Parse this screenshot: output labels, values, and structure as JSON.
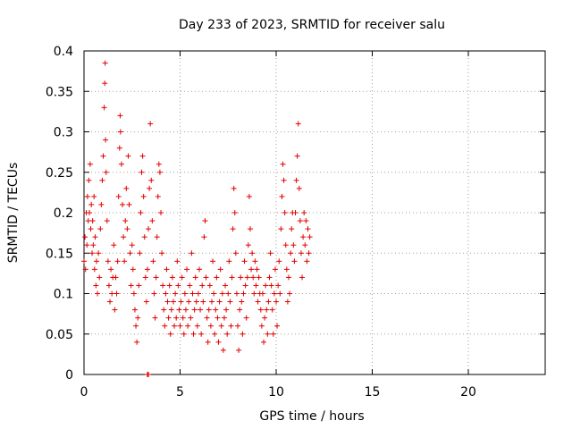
{
  "chart_data": {
    "type": "scatter",
    "title": "Day 233 of 2023, SRMTID for receiver salu",
    "xlabel": "GPS time / hours",
    "ylabel": "SRMTID / TECUs",
    "xlim": [
      0,
      24
    ],
    "ylim": [
      0,
      0.4
    ],
    "x_ticks": [
      0,
      5,
      10,
      15,
      20
    ],
    "y_ticks": [
      0,
      0.05,
      0.1,
      0.15,
      0.2,
      0.25,
      0.3,
      0.35,
      0.4
    ],
    "x_tick_labels": [
      "0",
      "5",
      "10",
      "15",
      "20"
    ],
    "y_tick_labels": [
      "0",
      "0.05",
      "0.1",
      "0.15",
      "0.2",
      "0.25",
      "0.3",
      "0.35",
      "0.4"
    ],
    "grid": true,
    "marker": "+",
    "color": "#e00000",
    "series": [
      {
        "points": [
          [
            0.0,
            0.14
          ],
          [
            0.05,
            0.17
          ],
          [
            0.08,
            0.13
          ],
          [
            0.12,
            0.2
          ],
          [
            0.15,
            0.16
          ],
          [
            0.18,
            0.22
          ],
          [
            0.22,
            0.19
          ],
          [
            0.25,
            0.24
          ],
          [
            0.28,
            0.2
          ],
          [
            0.32,
            0.26
          ],
          [
            0.35,
            0.18
          ],
          [
            0.38,
            0.21
          ],
          [
            0.42,
            0.15
          ],
          [
            0.45,
            0.19
          ],
          [
            0.48,
            0.16
          ],
          [
            0.52,
            0.22
          ],
          [
            0.55,
            0.13
          ],
          [
            0.58,
            0.17
          ],
          [
            0.62,
            0.11
          ],
          [
            0.65,
            0.14
          ],
          [
            0.7,
            0.1
          ],
          [
            0.75,
            0.15
          ],
          [
            0.8,
            0.12
          ],
          [
            0.85,
            0.18
          ],
          [
            0.9,
            0.21
          ],
          [
            0.95,
            0.24
          ],
          [
            1.0,
            0.27
          ],
          [
            1.05,
            0.33
          ],
          [
            1.08,
            0.36
          ],
          [
            1.1,
            0.385
          ],
          [
            1.12,
            0.29
          ],
          [
            1.15,
            0.25
          ],
          [
            1.2,
            0.19
          ],
          [
            1.25,
            0.14
          ],
          [
            1.3,
            0.11
          ],
          [
            1.35,
            0.09
          ],
          [
            1.4,
            0.13
          ],
          [
            1.45,
            0.1
          ],
          [
            1.5,
            0.12
          ],
          [
            1.55,
            0.16
          ],
          [
            1.6,
            0.08
          ],
          [
            1.65,
            0.12
          ],
          [
            1.7,
            0.1
          ],
          [
            1.75,
            0.14
          ],
          [
            1.8,
            0.22
          ],
          [
            1.85,
            0.28
          ],
          [
            1.88,
            0.32
          ],
          [
            1.9,
            0.3
          ],
          [
            1.95,
            0.26
          ],
          [
            2.0,
            0.21
          ],
          [
            2.05,
            0.17
          ],
          [
            2.1,
            0.14
          ],
          [
            2.15,
            0.19
          ],
          [
            2.2,
            0.23
          ],
          [
            2.25,
            0.18
          ],
          [
            2.3,
            0.27
          ],
          [
            2.35,
            0.21
          ],
          [
            2.4,
            0.15
          ],
          [
            2.45,
            0.11
          ],
          [
            2.5,
            0.16
          ],
          [
            2.55,
            0.13
          ],
          [
            2.6,
            0.1
          ],
          [
            2.65,
            0.08
          ],
          [
            2.7,
            0.06
          ],
          [
            2.75,
            0.04
          ],
          [
            2.8,
            0.07
          ],
          [
            2.85,
            0.11
          ],
          [
            2.9,
            0.15
          ],
          [
            2.95,
            0.2
          ],
          [
            3.0,
            0.25
          ],
          [
            3.05,
            0.27
          ],
          [
            3.1,
            0.22
          ],
          [
            3.15,
            0.17
          ],
          [
            3.2,
            0.12
          ],
          [
            3.25,
            0.09
          ],
          [
            3.3,
            0.13
          ],
          [
            3.35,
            0.18
          ],
          [
            3.4,
            0.23
          ],
          [
            3.45,
            0.31
          ],
          [
            3.5,
            0.24
          ],
          [
            3.55,
            0.19
          ],
          [
            3.6,
            0.14
          ],
          [
            3.65,
            0.1
          ],
          [
            3.7,
            0.07
          ],
          [
            3.75,
            0.12
          ],
          [
            3.8,
            0.17
          ],
          [
            3.85,
            0.22
          ],
          [
            3.9,
            0.26
          ],
          [
            3.95,
            0.25
          ],
          [
            4.0,
            0.2
          ],
          [
            4.05,
            0.15
          ],
          [
            4.1,
            0.11
          ],
          [
            4.15,
            0.08
          ],
          [
            4.2,
            0.06
          ],
          [
            4.25,
            0.1
          ],
          [
            4.3,
            0.13
          ],
          [
            4.35,
            0.09
          ],
          [
            4.4,
            0.07
          ],
          [
            4.45,
            0.11
          ],
          [
            4.5,
            0.05
          ],
          [
            4.55,
            0.08
          ],
          [
            4.6,
            0.12
          ],
          [
            4.65,
            0.09
          ],
          [
            4.7,
            0.06
          ],
          [
            4.75,
            0.1
          ],
          [
            4.8,
            0.07
          ],
          [
            4.85,
            0.14
          ],
          [
            4.9,
            0.11
          ],
          [
            4.95,
            0.08
          ],
          [
            5.0,
            0.06
          ],
          [
            5.05,
            0.09
          ],
          [
            5.1,
            0.12
          ],
          [
            5.15,
            0.07
          ],
          [
            5.2,
            0.05
          ],
          [
            5.25,
            0.1
          ],
          [
            5.3,
            0.08
          ],
          [
            5.35,
            0.13
          ],
          [
            5.4,
            0.06
          ],
          [
            5.45,
            0.09
          ],
          [
            5.5,
            0.11
          ],
          [
            5.55,
            0.07
          ],
          [
            5.6,
            0.15
          ],
          [
            5.65,
            0.1
          ],
          [
            5.7,
            0.05
          ],
          [
            5.75,
            0.08
          ],
          [
            5.8,
            0.12
          ],
          [
            5.85,
            0.09
          ],
          [
            5.9,
            0.06
          ],
          [
            5.95,
            0.1
          ],
          [
            6.0,
            0.13
          ],
          [
            6.05,
            0.08
          ],
          [
            6.1,
            0.05
          ],
          [
            6.15,
            0.11
          ],
          [
            6.2,
            0.09
          ],
          [
            6.25,
            0.17
          ],
          [
            6.3,
            0.19
          ],
          [
            6.35,
            0.12
          ],
          [
            6.4,
            0.07
          ],
          [
            6.45,
            0.04
          ],
          [
            6.5,
            0.08
          ],
          [
            6.55,
            0.11
          ],
          [
            6.6,
            0.06
          ],
          [
            6.65,
            0.09
          ],
          [
            6.7,
            0.14
          ],
          [
            6.75,
            0.1
          ],
          [
            6.8,
            0.05
          ],
          [
            6.85,
            0.08
          ],
          [
            6.9,
            0.12
          ],
          [
            6.95,
            0.07
          ],
          [
            7.0,
            0.04
          ],
          [
            7.05,
            0.09
          ],
          [
            7.1,
            0.13
          ],
          [
            7.15,
            0.06
          ],
          [
            7.2,
            0.1
          ],
          [
            7.25,
            0.03
          ],
          [
            7.3,
            0.07
          ],
          [
            7.35,
            0.11
          ],
          [
            7.4,
            0.08
          ],
          [
            7.45,
            0.05
          ],
          [
            7.5,
            0.1
          ],
          [
            7.55,
            0.14
          ],
          [
            7.6,
            0.09
          ],
          [
            7.65,
            0.06
          ],
          [
            7.7,
            0.12
          ],
          [
            7.75,
            0.18
          ],
          [
            7.8,
            0.23
          ],
          [
            7.85,
            0.2
          ],
          [
            7.9,
            0.15
          ],
          [
            7.95,
            0.1
          ],
          [
            8.0,
            0.06
          ],
          [
            8.05,
            0.03
          ],
          [
            8.1,
            0.08
          ],
          [
            8.15,
            0.12
          ],
          [
            8.2,
            0.09
          ],
          [
            8.25,
            0.05
          ],
          [
            8.3,
            0.1
          ],
          [
            8.35,
            0.14
          ],
          [
            8.4,
            0.11
          ],
          [
            8.45,
            0.07
          ],
          [
            8.5,
            0.12
          ],
          [
            8.55,
            0.16
          ],
          [
            8.6,
            0.22
          ],
          [
            8.65,
            0.18
          ],
          [
            8.7,
            0.13
          ],
          [
            8.75,
            0.15
          ],
          [
            8.8,
            0.12
          ],
          [
            8.85,
            0.1
          ],
          [
            8.9,
            0.14
          ],
          [
            8.95,
            0.11
          ],
          [
            9.0,
            0.13
          ],
          [
            9.05,
            0.09
          ],
          [
            9.1,
            0.12
          ],
          [
            9.15,
            0.1
          ],
          [
            9.2,
            0.08
          ],
          [
            9.25,
            0.06
          ],
          [
            9.3,
            0.1
          ],
          [
            9.35,
            0.04
          ],
          [
            9.4,
            0.07
          ],
          [
            9.45,
            0.11
          ],
          [
            9.5,
            0.08
          ],
          [
            9.55,
            0.05
          ],
          [
            9.6,
            0.09
          ],
          [
            9.65,
            0.12
          ],
          [
            9.7,
            0.15
          ],
          [
            9.75,
            0.11
          ],
          [
            9.8,
            0.08
          ],
          [
            9.85,
            0.05
          ],
          [
            9.9,
            0.1
          ],
          [
            9.95,
            0.13
          ],
          [
            10.0,
            0.09
          ],
          [
            10.05,
            0.06
          ],
          [
            10.1,
            0.11
          ],
          [
            10.15,
            0.14
          ],
          [
            10.2,
            0.1
          ],
          [
            10.25,
            0.18
          ],
          [
            10.3,
            0.22
          ],
          [
            10.35,
            0.26
          ],
          [
            10.4,
            0.24
          ],
          [
            10.45,
            0.2
          ],
          [
            10.5,
            0.16
          ],
          [
            10.55,
            0.13
          ],
          [
            10.6,
            0.09
          ],
          [
            10.65,
            0.12
          ],
          [
            10.7,
            0.1
          ],
          [
            10.75,
            0.15
          ],
          [
            10.8,
            0.18
          ],
          [
            10.85,
            0.2
          ],
          [
            10.9,
            0.16
          ],
          [
            10.95,
            0.14
          ],
          [
            11.0,
            0.2
          ],
          [
            11.05,
            0.24
          ],
          [
            11.1,
            0.27
          ],
          [
            11.15,
            0.31
          ],
          [
            11.2,
            0.23
          ],
          [
            11.25,
            0.19
          ],
          [
            11.3,
            0.15
          ],
          [
            11.35,
            0.12
          ],
          [
            11.4,
            0.17
          ],
          [
            11.45,
            0.2
          ],
          [
            11.5,
            0.16
          ],
          [
            11.55,
            0.19
          ],
          [
            11.6,
            0.14
          ],
          [
            11.65,
            0.18
          ],
          [
            11.7,
            0.15
          ],
          [
            11.75,
            0.17
          ],
          [
            3.3,
            0.0
          ],
          [
            3.35,
            0.0
          ]
        ]
      }
    ]
  }
}
